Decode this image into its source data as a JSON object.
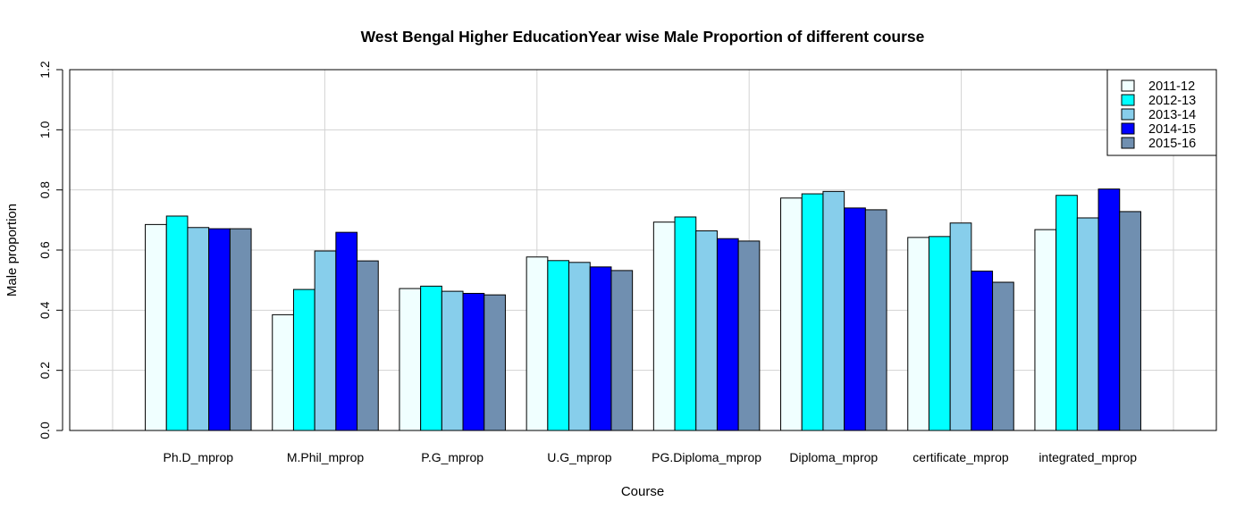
{
  "chart_data": {
    "type": "bar",
    "title": "West Bengal Higher EducationYear wise Male Proportion of different course",
    "xlabel": "Course",
    "ylabel": "Male proportion",
    "ylim": [
      0,
      1.2
    ],
    "yticks": [
      "0.0",
      "0.2",
      "0.4",
      "0.6",
      "0.8",
      "1.0",
      "1.2"
    ],
    "grid": true,
    "legend_position": "top-right",
    "categories": [
      "Ph.D_mprop",
      "M.Phil_mprop",
      "P.G_mprop",
      "U.G_mprop",
      "PG.Diploma_mprop",
      "Diploma_mprop",
      "certificate_mprop",
      "integrated_mprop"
    ],
    "series": [
      {
        "name": "2011-12",
        "color": "#F0FFFF",
        "values": [
          0.685,
          0.385,
          0.472,
          0.577,
          0.693,
          0.773,
          0.642,
          0.668
        ]
      },
      {
        "name": "2012-13",
        "color": "#00FFFF",
        "values": [
          0.713,
          0.469,
          0.48,
          0.565,
          0.71,
          0.787,
          0.645,
          0.782
        ]
      },
      {
        "name": "2013-14",
        "color": "#87CEEB",
        "values": [
          0.675,
          0.597,
          0.463,
          0.559,
          0.664,
          0.795,
          0.69,
          0.707
        ]
      },
      {
        "name": "2014-15",
        "color": "#0000FF",
        "values": [
          0.671,
          0.659,
          0.456,
          0.544,
          0.638,
          0.74,
          0.53,
          0.803
        ]
      },
      {
        "name": "2015-16",
        "color": "#708FB0",
        "values": [
          0.671,
          0.564,
          0.451,
          0.532,
          0.63,
          0.734,
          0.493,
          0.728
        ]
      }
    ]
  }
}
